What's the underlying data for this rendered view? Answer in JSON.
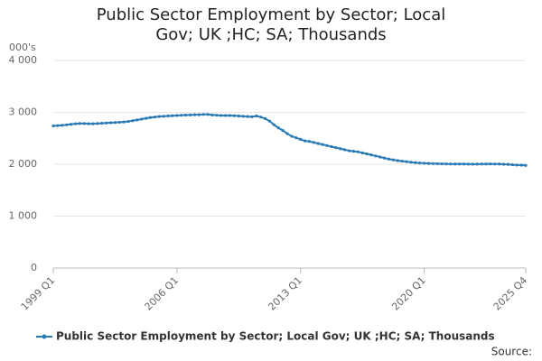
{
  "chart_data": {
    "type": "line",
    "title": "Public Sector Employment by Sector; Local Gov; UK ;HC; SA; Thousands",
    "y_label": "000's",
    "source": "Source:",
    "categories": [
      "1999 Q1",
      null,
      null,
      null,
      null,
      null,
      null,
      null,
      null,
      null,
      null,
      null,
      null,
      null,
      null,
      null,
      null,
      null,
      null,
      null,
      null,
      null,
      null,
      null,
      null,
      null,
      null,
      null,
      "2006 Q1",
      null,
      null,
      null,
      null,
      null,
      null,
      null,
      null,
      null,
      null,
      null,
      null,
      null,
      null,
      null,
      null,
      null,
      null,
      null,
      null,
      null,
      null,
      null,
      null,
      null,
      null,
      null,
      "2013 Q1",
      null,
      null,
      null,
      null,
      null,
      null,
      null,
      null,
      null,
      null,
      null,
      null,
      null,
      null,
      null,
      null,
      null,
      null,
      null,
      null,
      null,
      null,
      null,
      null,
      null,
      null,
      null,
      "2020 Q1",
      null,
      null,
      null,
      null,
      null,
      null,
      null,
      null,
      null,
      null,
      null,
      null,
      null,
      null,
      null,
      null,
      null,
      null,
      null,
      null,
      null,
      null,
      "2025 Q4"
    ],
    "series": [
      {
        "name": "Public Sector Employment by Sector; Local Gov; UK ;HC; SA; Thousands",
        "color": "#2a7ab5",
        "values": [
          2740,
          2745,
          2750,
          2760,
          2770,
          2780,
          2785,
          2785,
          2780,
          2780,
          2785,
          2790,
          2795,
          2800,
          2805,
          2810,
          2815,
          2825,
          2840,
          2855,
          2870,
          2885,
          2900,
          2910,
          2920,
          2925,
          2930,
          2935,
          2940,
          2945,
          2948,
          2950,
          2955,
          2955,
          2960,
          2960,
          2950,
          2945,
          2940,
          2940,
          2940,
          2935,
          2930,
          2925,
          2920,
          2915,
          2930,
          2910,
          2880,
          2830,
          2760,
          2700,
          2650,
          2590,
          2540,
          2510,
          2480,
          2450,
          2440,
          2420,
          2400,
          2380,
          2360,
          2340,
          2320,
          2300,
          2280,
          2260,
          2250,
          2240,
          2220,
          2200,
          2180,
          2160,
          2140,
          2120,
          2100,
          2085,
          2070,
          2060,
          2050,
          2040,
          2030,
          2025,
          2020,
          2015,
          2012,
          2010,
          2008,
          2006,
          2005,
          2005,
          2005,
          2004,
          2003,
          2002,
          2003,
          2005,
          2005,
          2006,
          2005,
          2004,
          2000,
          1998,
          1990,
          1985,
          1982,
          1978
        ]
      }
    ],
    "ylim": [
      0,
      4000
    ],
    "yticks": [
      0,
      {
        "value": 1000,
        "label": "1 000"
      },
      {
        "value": 2000,
        "label": "2 000"
      },
      {
        "value": 3000,
        "label": "3 000"
      },
      {
        "value": 4000,
        "label": "4 000"
      }
    ],
    "grid": true
  }
}
